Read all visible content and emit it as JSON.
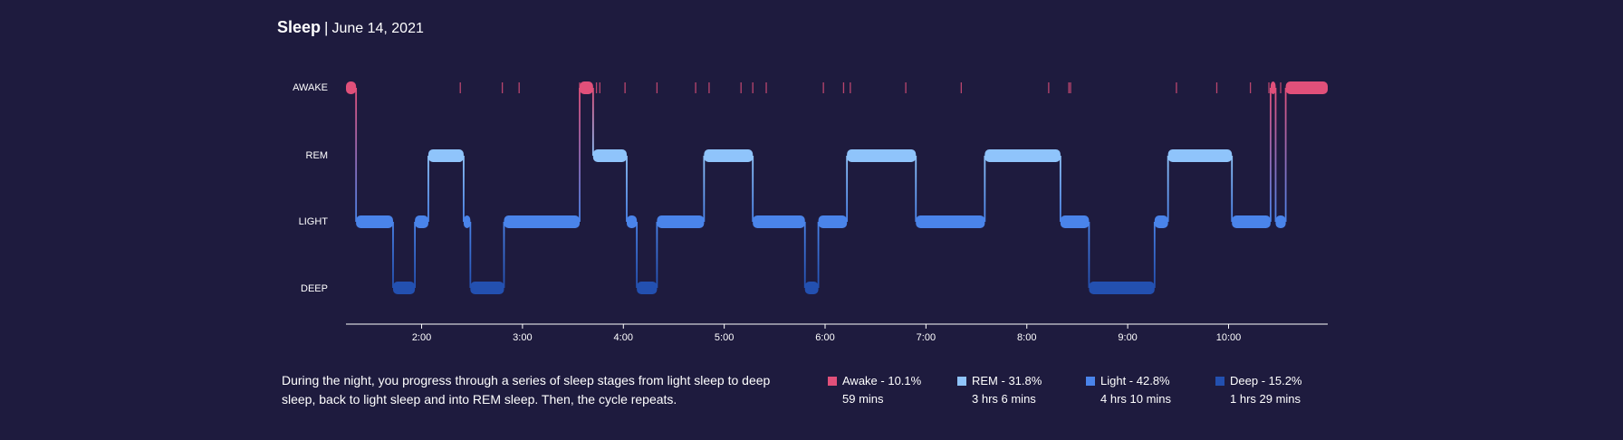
{
  "header": {
    "title": "Sleep",
    "separator": "|",
    "date": "June 14, 2021"
  },
  "chart_data": {
    "type": "line",
    "subtype": "hypnogram-step",
    "stages": [
      "AWAKE",
      "REM",
      "LIGHT",
      "DEEP"
    ],
    "x_start": "1:15",
    "x_end": "10:59",
    "xticks": [
      "2:00",
      "3:00",
      "4:00",
      "5:00",
      "6:00",
      "7:00",
      "8:00",
      "9:00",
      "10:00"
    ],
    "segments": [
      {
        "stage": "AWAKE",
        "start": "1:15",
        "end": "1:21"
      },
      {
        "stage": "LIGHT",
        "start": "1:21",
        "end": "1:43"
      },
      {
        "stage": "DEEP",
        "start": "1:43",
        "end": "1:56"
      },
      {
        "stage": "LIGHT",
        "start": "1:56",
        "end": "2:04"
      },
      {
        "stage": "REM",
        "start": "2:04",
        "end": "2:25"
      },
      {
        "stage": "LIGHT",
        "start": "2:25",
        "end": "2:29"
      },
      {
        "stage": "DEEP",
        "start": "2:29",
        "end": "2:49"
      },
      {
        "stage": "LIGHT",
        "start": "2:49",
        "end": "3:34"
      },
      {
        "stage": "AWAKE",
        "start": "3:34",
        "end": "3:42"
      },
      {
        "stage": "REM",
        "start": "3:42",
        "end": "4:02"
      },
      {
        "stage": "LIGHT",
        "start": "4:02",
        "end": "4:08"
      },
      {
        "stage": "DEEP",
        "start": "4:08",
        "end": "4:20"
      },
      {
        "stage": "LIGHT",
        "start": "4:20",
        "end": "4:48"
      },
      {
        "stage": "REM",
        "start": "4:48",
        "end": "5:17"
      },
      {
        "stage": "LIGHT",
        "start": "5:17",
        "end": "5:48"
      },
      {
        "stage": "DEEP",
        "start": "5:48",
        "end": "5:56"
      },
      {
        "stage": "LIGHT",
        "start": "5:56",
        "end": "6:13"
      },
      {
        "stage": "REM",
        "start": "6:13",
        "end": "6:54"
      },
      {
        "stage": "LIGHT",
        "start": "6:54",
        "end": "7:35"
      },
      {
        "stage": "REM",
        "start": "7:35",
        "end": "8:20"
      },
      {
        "stage": "LIGHT",
        "start": "8:20",
        "end": "8:37"
      },
      {
        "stage": "DEEP",
        "start": "8:37",
        "end": "9:16"
      },
      {
        "stage": "LIGHT",
        "start": "9:16",
        "end": "9:24"
      },
      {
        "stage": "REM",
        "start": "9:24",
        "end": "10:02"
      },
      {
        "stage": "LIGHT",
        "start": "10:02",
        "end": "10:25"
      },
      {
        "stage": "AWAKE",
        "start": "10:25",
        "end": "10:28"
      },
      {
        "stage": "LIGHT",
        "start": "10:28",
        "end": "10:34"
      },
      {
        "stage": "AWAKE",
        "start": "10:34",
        "end": "10:59"
      }
    ],
    "brief_awakenings": [
      "2:23",
      "2:48",
      "2:58",
      "3:34",
      "3:44",
      "3:46",
      "4:01",
      "4:20",
      "4:43",
      "4:51",
      "5:10",
      "5:17",
      "5:25",
      "5:59",
      "6:11",
      "6:15",
      "6:48",
      "7:21",
      "8:13",
      "8:25",
      "8:26",
      "9:29",
      "9:53",
      "10:13",
      "10:24",
      "10:31"
    ],
    "colors": {
      "AWAKE": "#e1507a",
      "REM": "#8fc4fb",
      "LIGHT": "#4a84ea",
      "DEEP": "#2350b0"
    }
  },
  "description": "During the night, you progress through a series of sleep stages from light sleep to deep sleep, back to light sleep and into REM sleep. Then, the cycle repeats.",
  "legend": [
    {
      "label": "Awake - 10.1%",
      "duration": "59 mins",
      "color": "#e1507a"
    },
    {
      "label": "REM - 31.8%",
      "duration": "3 hrs 6 mins",
      "color": "#8fc4fb"
    },
    {
      "label": "Light - 42.8%",
      "duration": "4 hrs 10 mins",
      "color": "#4a84ea"
    },
    {
      "label": "Deep - 15.2%",
      "duration": "1 hrs 29 mins",
      "color": "#2350b0"
    }
  ]
}
